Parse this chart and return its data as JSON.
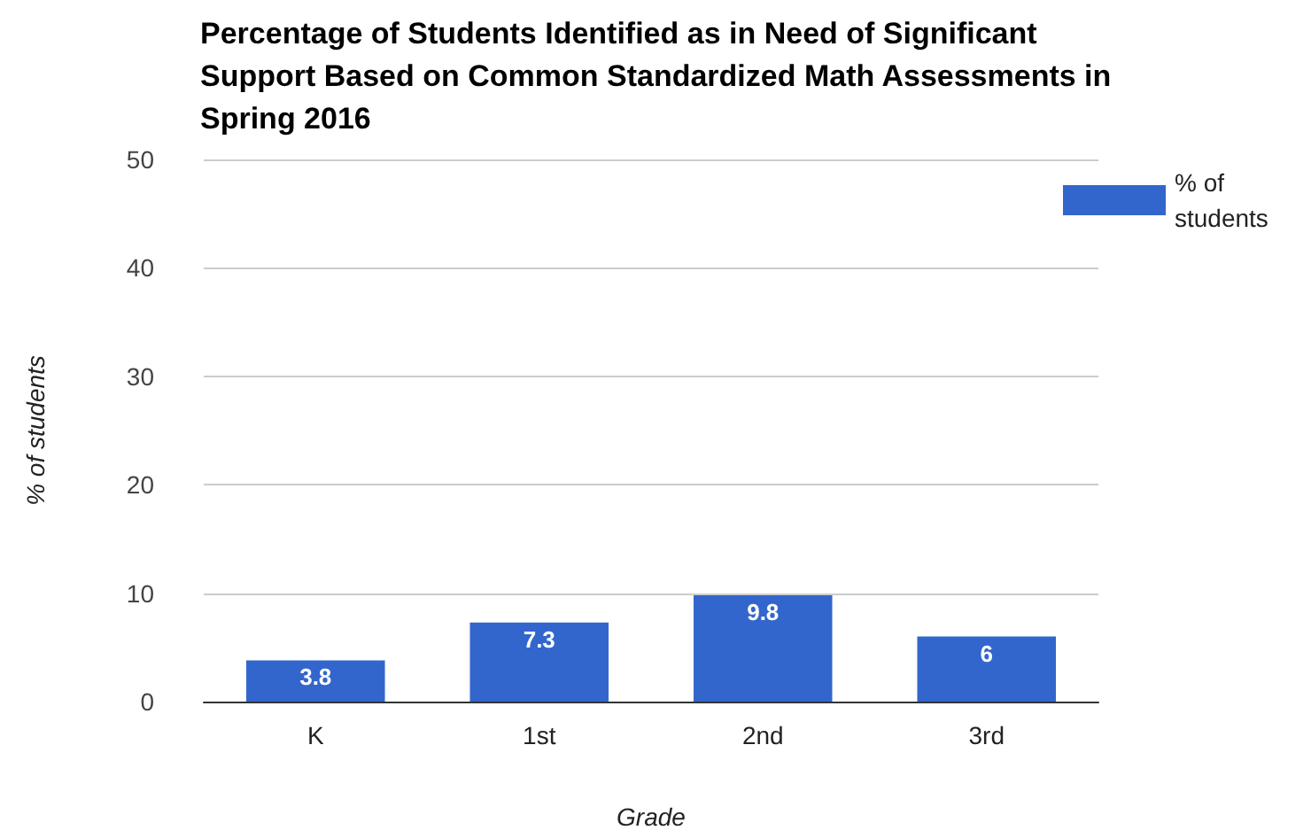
{
  "chart_data": {
    "type": "bar",
    "title": "Percentage of Students Identified as in Need of Significant Support Based on Common Standardized Math Assessments in Spring 2016",
    "xlabel": "Grade",
    "ylabel": "% of students",
    "categories": [
      "K",
      "1st",
      "2nd",
      "3rd"
    ],
    "series": [
      {
        "name": "% of students",
        "color": "#3366cc",
        "values": [
          3.8,
          7.3,
          9.8,
          6
        ]
      }
    ],
    "ylim": [
      0,
      50
    ],
    "yticks": [
      0,
      10,
      20,
      30,
      40,
      50
    ],
    "grid": "y",
    "legend": "right",
    "data_labels": true
  }
}
